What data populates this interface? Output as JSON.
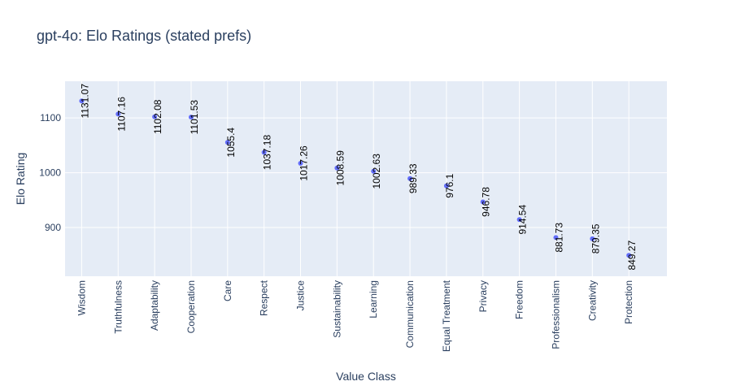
{
  "chart_data": {
    "type": "scatter",
    "title": "gpt-4o: Elo Ratings (stated prefs)",
    "xlabel": "Value Class",
    "ylabel": "Elo Rating",
    "categories": [
      "Wisdom",
      "Truthfulness",
      "Adaptability",
      "Cooperation",
      "Care",
      "Respect",
      "Justice",
      "Sustainability",
      "Learning",
      "Communication",
      "Equal Treatment",
      "Privacy",
      "Freedom",
      "Professionalism",
      "Creativity",
      "Protection"
    ],
    "values": [
      1131.07,
      1107.16,
      1102.08,
      1101.53,
      1055.4,
      1037.18,
      1017.26,
      1008.59,
      1002.63,
      989.33,
      976.1,
      946.78,
      914.54,
      881.73,
      879.35,
      849.27
    ],
    "data_labels": [
      "1131.07",
      "1107.16",
      "1102.08",
      "1101.53",
      "1055.4",
      "1037.18",
      "1017.26",
      "1008.59",
      "1002.63",
      "989.33",
      "976.1",
      "946.78",
      "914.54",
      "881.73",
      "879.35",
      "849.27"
    ],
    "y_ticks": [
      900,
      1000,
      1100
    ],
    "y_tick_labels": [
      "900",
      "1000",
      "1100"
    ],
    "ylim": [
      811,
      1167
    ],
    "grid": true,
    "legend": "none",
    "colors": {
      "marker": "#636efa",
      "plot_bg": "#e5ecf6",
      "grid": "#ffffff",
      "text": "#2a3f5f",
      "label": "#000000"
    }
  }
}
